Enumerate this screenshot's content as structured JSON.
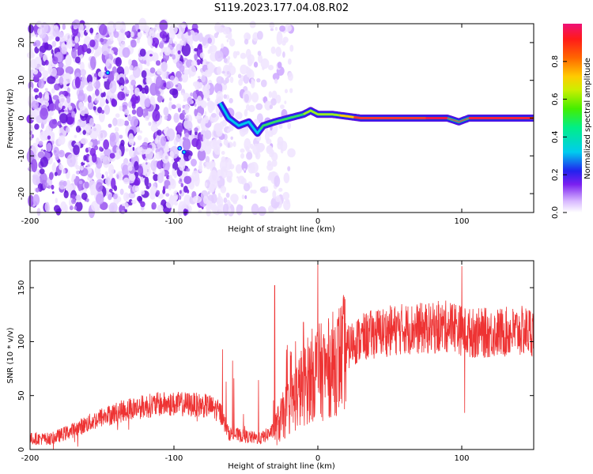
{
  "title": "S119.2023.177.04.08.R02",
  "chart_data": [
    {
      "type": "heatmap",
      "xlabel": "Height of straight line (km)",
      "ylabel": "Frequency (Hz)",
      "xlim": [
        -200,
        150
      ],
      "ylim": [
        -25,
        25
      ],
      "xticks": [
        -200,
        -100,
        0,
        100
      ],
      "yticks": [
        -20,
        -10,
        0,
        10,
        20
      ],
      "colorbar": {
        "label": "Normalized spectral amplitude",
        "range": [
          0,
          1
        ],
        "ticks": [
          "0.0",
          "0.2",
          "0.4",
          "0.6",
          "0.8"
        ]
      },
      "features": {
        "noise_region_x": [
          -200,
          -30
        ],
        "signal_line": [
          {
            "x": -68,
            "y": 4
          },
          {
            "x": -62,
            "y": 0
          },
          {
            "x": -55,
            "y": -2
          },
          {
            "x": -48,
            "y": -1
          },
          {
            "x": -42,
            "y": -4
          },
          {
            "x": -38,
            "y": -2
          },
          {
            "x": -30,
            "y": -1
          },
          {
            "x": -20,
            "y": 0
          },
          {
            "x": -10,
            "y": 1
          },
          {
            "x": -5,
            "y": 2
          },
          {
            "x": 0,
            "y": 1
          },
          {
            "x": 10,
            "y": 1
          },
          {
            "x": 20,
            "y": 0.5
          },
          {
            "x": 30,
            "y": 0
          },
          {
            "x": 60,
            "y": 0
          },
          {
            "x": 90,
            "y": 0
          },
          {
            "x": 98,
            "y": -1
          },
          {
            "x": 105,
            "y": 0
          },
          {
            "x": 150,
            "y": 0
          }
        ]
      }
    },
    {
      "type": "line",
      "xlabel": "Height of straight line (km)",
      "ylabel": "SNR (10 * v/v)",
      "xlim": [
        -200,
        150
      ],
      "ylim": [
        0,
        175
      ],
      "xticks": [
        -200,
        -100,
        0,
        100
      ],
      "yticks": [
        0,
        50,
        100,
        150
      ],
      "color": "#ee3333",
      "envelope": [
        {
          "x": -200,
          "y": 10
        },
        {
          "x": -185,
          "y": 10
        },
        {
          "x": -170,
          "y": 18
        },
        {
          "x": -150,
          "y": 30
        },
        {
          "x": -130,
          "y": 38
        },
        {
          "x": -110,
          "y": 42
        },
        {
          "x": -90,
          "y": 42
        },
        {
          "x": -75,
          "y": 40
        },
        {
          "x": -68,
          "y": 35
        },
        {
          "x": -62,
          "y": 15
        },
        {
          "x": -50,
          "y": 12
        },
        {
          "x": -40,
          "y": 10
        },
        {
          "x": -30,
          "y": 18
        },
        {
          "x": -20,
          "y": 40
        },
        {
          "x": -10,
          "y": 60
        },
        {
          "x": -2,
          "y": 72
        },
        {
          "x": 5,
          "y": 72
        },
        {
          "x": 15,
          "y": 85
        },
        {
          "x": 25,
          "y": 100
        },
        {
          "x": 40,
          "y": 108
        },
        {
          "x": 60,
          "y": 112
        },
        {
          "x": 80,
          "y": 112
        },
        {
          "x": 95,
          "y": 115
        },
        {
          "x": 100,
          "y": 110
        },
        {
          "x": 105,
          "y": 108
        },
        {
          "x": 120,
          "y": 108
        },
        {
          "x": 150,
          "y": 110
        }
      ],
      "spikes": [
        {
          "x": -30,
          "y": 152
        },
        {
          "x": -25,
          "y": 45
        },
        {
          "x": -10,
          "y": 118
        },
        {
          "x": 0,
          "y": 175
        },
        {
          "x": 100,
          "y": 170
        },
        {
          "x": 102,
          "y": 34
        }
      ]
    }
  ]
}
